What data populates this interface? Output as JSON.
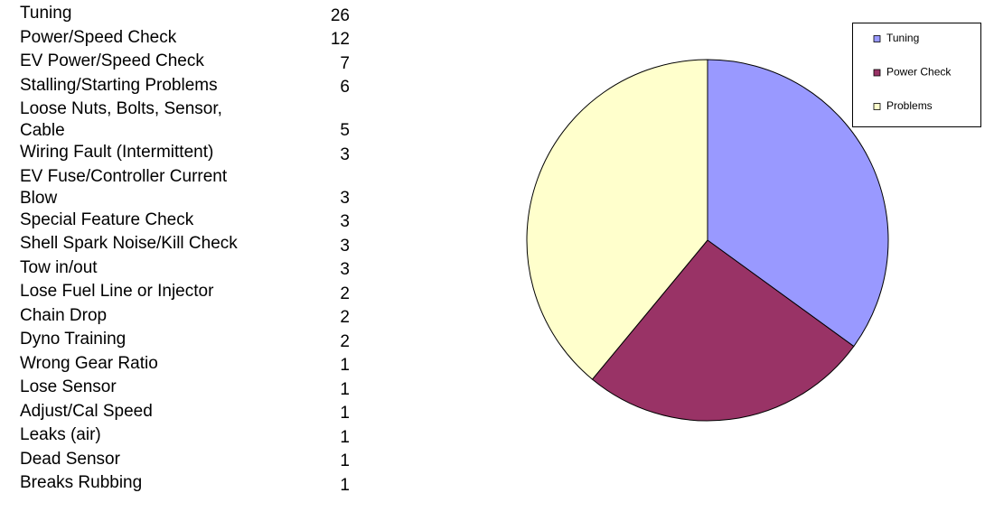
{
  "table": {
    "rows": [
      [
        "Tuning",
        26
      ],
      [
        "Power/Speed Check",
        12
      ],
      [
        "EV Power/Speed Check",
        7
      ],
      [
        "Stalling/Starting Problems",
        6
      ],
      [
        "Loose Nuts, Bolts, Sensor, Cable",
        5
      ],
      [
        "Wiring Fault (Intermittent)",
        3
      ],
      [
        "EV Fuse/Controller Current Blow",
        3
      ],
      [
        "Special Feature Check",
        3
      ],
      [
        "Shell Spark Noise/Kill Check",
        3
      ],
      [
        "Tow in/out",
        3
      ],
      [
        "Lose Fuel Line or Injector",
        2
      ],
      [
        "Chain Drop",
        2
      ],
      [
        "Dyno Training",
        2
      ],
      [
        "Wrong Gear Ratio",
        1
      ],
      [
        "Lose Sensor",
        1
      ],
      [
        "Adjust/Cal Speed",
        1
      ],
      [
        "Leaks (air)",
        1
      ],
      [
        "Dead Sensor",
        1
      ],
      [
        "Breaks Rubbing",
        1
      ]
    ]
  },
  "chart_data": {
    "type": "pie",
    "categories": [
      "Tuning",
      "Power Check",
      "Problems"
    ],
    "values": [
      35,
      26,
      39
    ],
    "colors": [
      "#9999ff",
      "#993366",
      "#ffffcc"
    ],
    "legend": "top-right"
  }
}
